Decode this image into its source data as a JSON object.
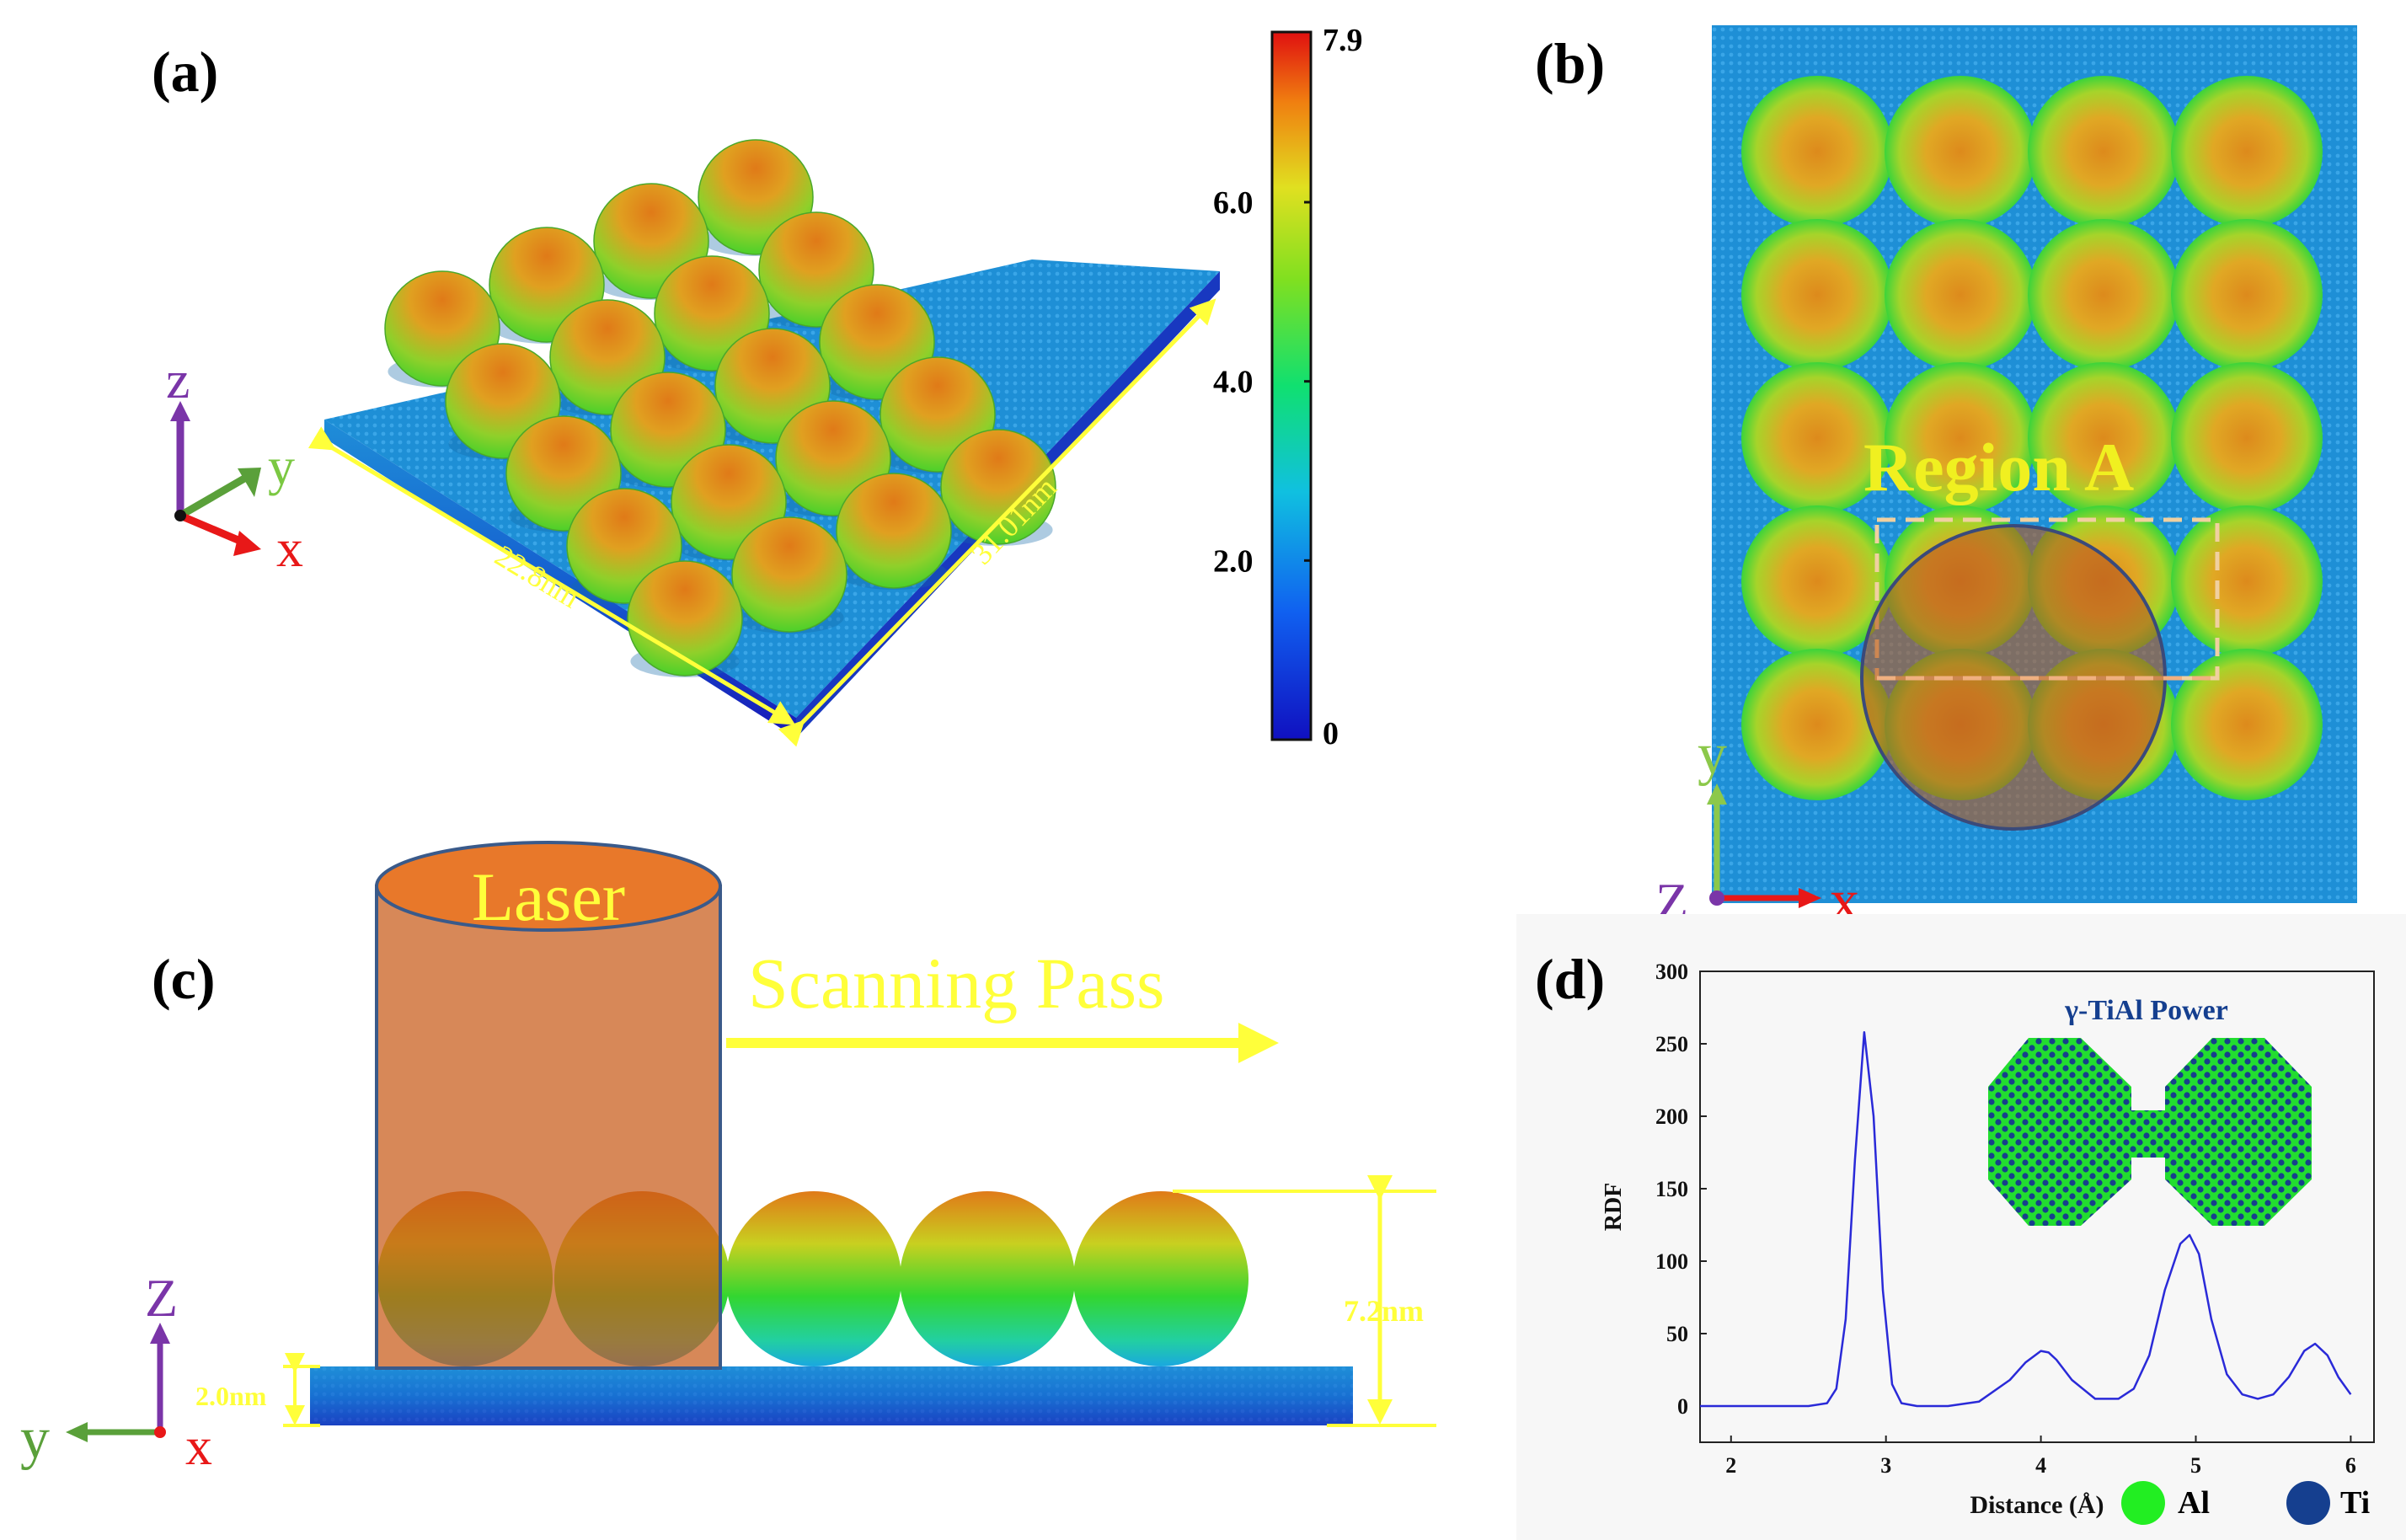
{
  "panels": {
    "a": {
      "label": "(a)",
      "colorbar": {
        "max": "7.9",
        "ticks": [
          "6.0",
          "4.0",
          "2.0",
          "0"
        ]
      },
      "dim_x": "22.8nm",
      "dim_y": "31.01nm",
      "axes": {
        "z": "z",
        "y": "y",
        "x": "x"
      }
    },
    "b": {
      "label": "(b)",
      "region": "Region A",
      "axes": {
        "y": "y",
        "z": "Z",
        "x": "x"
      }
    },
    "c": {
      "label": "(c)",
      "laser": "Laser",
      "scanning": "Scanning Pass",
      "height_total": "7.2nm",
      "height_substrate": "2.0nm",
      "axes": {
        "z": "Z",
        "y": "y",
        "x": "x"
      }
    },
    "d": {
      "label": "(d)",
      "inset_title": "γ-TiAl Power",
      "legend": [
        {
          "name": "Al",
          "color": "#22ee22"
        },
        {
          "name": "Ti",
          "color": "#153f8f"
        }
      ]
    }
  },
  "colors": {
    "substrate": "#1e8fd6",
    "sphere_top": "#e08a1a",
    "sphere_mid": "#aacc1a",
    "sphere_rim": "#33d630",
    "arrow_yellow": "#ffff3a",
    "laser_fill": "#d0703a",
    "rdf_line": "#2a2ad8"
  },
  "chart_data": {
    "type": "line",
    "title": "",
    "xlabel": "Distance (Å)",
    "ylabel": "RDF",
    "xlim": [
      1.8,
      6.15
    ],
    "ylim": [
      -25,
      300
    ],
    "xticks": [
      2,
      3,
      4,
      5,
      6
    ],
    "yticks": [
      0,
      50,
      100,
      150,
      200,
      250,
      300
    ],
    "series": [
      {
        "name": "RDF",
        "x": [
          1.8,
          2.5,
          2.62,
          2.68,
          2.74,
          2.8,
          2.86,
          2.92,
          2.98,
          3.04,
          3.1,
          3.2,
          3.4,
          3.6,
          3.8,
          3.9,
          4.0,
          4.05,
          4.1,
          4.2,
          4.35,
          4.5,
          4.6,
          4.7,
          4.8,
          4.9,
          4.96,
          5.02,
          5.1,
          5.2,
          5.3,
          5.4,
          5.5,
          5.6,
          5.7,
          5.77,
          5.85,
          5.92,
          6.0
        ],
        "y": [
          0,
          0,
          2,
          12,
          60,
          170,
          258,
          200,
          80,
          15,
          2,
          0,
          0,
          3,
          18,
          30,
          38,
          37,
          32,
          18,
          5,
          5,
          12,
          35,
          80,
          112,
          118,
          105,
          60,
          22,
          8,
          5,
          8,
          20,
          38,
          43,
          35,
          20,
          8
        ]
      }
    ]
  }
}
